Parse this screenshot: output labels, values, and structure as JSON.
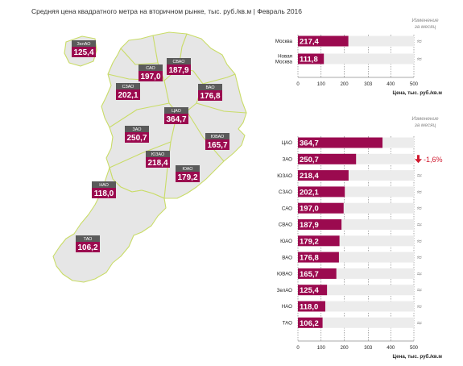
{
  "title": "Средняя цена квадратного метра на вторичном рынке, тыс. руб./кв.м | Февраль 2016",
  "colors": {
    "bar": "#9b0a4f",
    "track": "#ececec",
    "map_fill": "#e6e6e6",
    "map_stroke": "#c9dc67",
    "label_bg": "#5a5a5a",
    "value_bg": "#9b0a4f",
    "change_down": "#d0192e"
  },
  "map_labels": [
    {
      "name": "ЗелАО",
      "value": "125,4"
    },
    {
      "name": "САО",
      "value": "197,0"
    },
    {
      "name": "СВАО",
      "value": "187,9"
    },
    {
      "name": "СЗАО",
      "value": "202,1"
    },
    {
      "name": "ВАО",
      "value": "176,8"
    },
    {
      "name": "ЦАО",
      "value": "364,7"
    },
    {
      "name": "ЗАО",
      "value": "250,7"
    },
    {
      "name": "ЮВАО",
      "value": "165,7"
    },
    {
      "name": "ЮЗАО",
      "value": "218,4"
    },
    {
      "name": "ЮАО",
      "value": "179,2"
    },
    {
      "name": "НАО",
      "value": "118,0"
    },
    {
      "name": "ТАО",
      "value": "106,2"
    }
  ],
  "chart_data": [
    {
      "type": "bar",
      "orientation": "horizontal",
      "categories": [
        "Москва",
        "Новая Москва"
      ],
      "values": [
        217.4,
        111.8
      ],
      "value_labels": [
        "217,4",
        "111,8"
      ],
      "xlabel": "Цена, тыс. руб./кв.м",
      "xlim": [
        0,
        500
      ],
      "ticks": [
        "0",
        "100",
        "200",
        "303",
        "400",
        "500"
      ],
      "change_header": [
        "Изменение",
        "за месяц"
      ],
      "changes": [
        "≈",
        "≈"
      ]
    },
    {
      "type": "bar",
      "orientation": "horizontal",
      "categories": [
        "ЦАО",
        "ЗАО",
        "ЮЗАО",
        "СЗАО",
        "САО",
        "СВАО",
        "ЮАО",
        "ВАО",
        "ЮВАО",
        "ЗелАО",
        "НАО",
        "ТАО"
      ],
      "values": [
        364.7,
        250.7,
        218.4,
        202.1,
        197.0,
        187.9,
        179.2,
        176.8,
        165.7,
        125.4,
        118.0,
        106.2
      ],
      "value_labels": [
        "364,7",
        "250,7",
        "218,4",
        "202,1",
        "197,0",
        "187,9",
        "179,2",
        "176,8",
        "165,7",
        "125,4",
        "118,0",
        "106,2"
      ],
      "xlabel": "Цена, тыс. руб./кв.м",
      "xlim": [
        0,
        500
      ],
      "ticks": [
        "0",
        "100",
        "200",
        "303",
        "400",
        "500"
      ],
      "change_header": [
        "Изменение",
        "за месяц"
      ],
      "changes": [
        "",
        "-1,6%",
        "≈",
        "≈",
        "≈",
        "≈",
        "≈",
        "≈",
        "≈",
        "≈",
        "≈",
        "≈"
      ]
    }
  ]
}
